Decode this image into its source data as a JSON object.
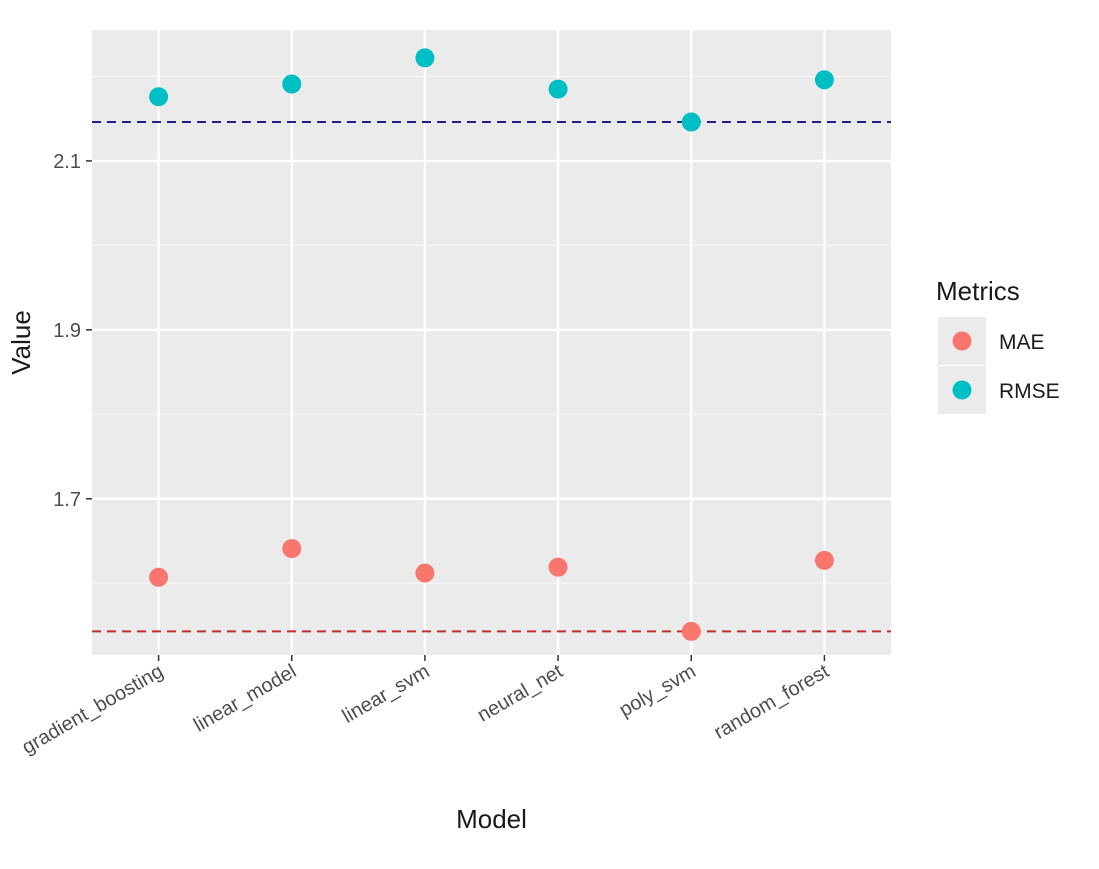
{
  "chart_data": {
    "type": "scatter",
    "title": "",
    "xlabel": "Model",
    "ylabel": "Value",
    "categories": [
      "gradient_boosting",
      "linear_model",
      "linear_svm",
      "neural_net",
      "poly_svm",
      "random_forest"
    ],
    "y_ticks": [
      "1.7",
      "1.9",
      "2.1"
    ],
    "y_tick_values": [
      1.7,
      1.9,
      2.1
    ],
    "ylim": [
      1.515,
      2.255
    ],
    "grid": true,
    "legend_title": "Metrics",
    "legend_position": "right",
    "series": [
      {
        "name": "MAE",
        "color": "#F8766D",
        "values": [
          1.607,
          1.641,
          1.612,
          1.619,
          1.543,
          1.627
        ]
      },
      {
        "name": "RMSE",
        "color": "#00BFC4",
        "values": [
          2.176,
          2.191,
          2.222,
          2.185,
          2.146,
          2.196
        ]
      }
    ],
    "reference_lines": [
      {
        "series": "RMSE",
        "value": 2.146,
        "color": "#1f1f8f",
        "style": "dashed"
      },
      {
        "series": "MAE",
        "value": 1.543,
        "color": "#c0312b",
        "style": "dashed"
      }
    ]
  }
}
